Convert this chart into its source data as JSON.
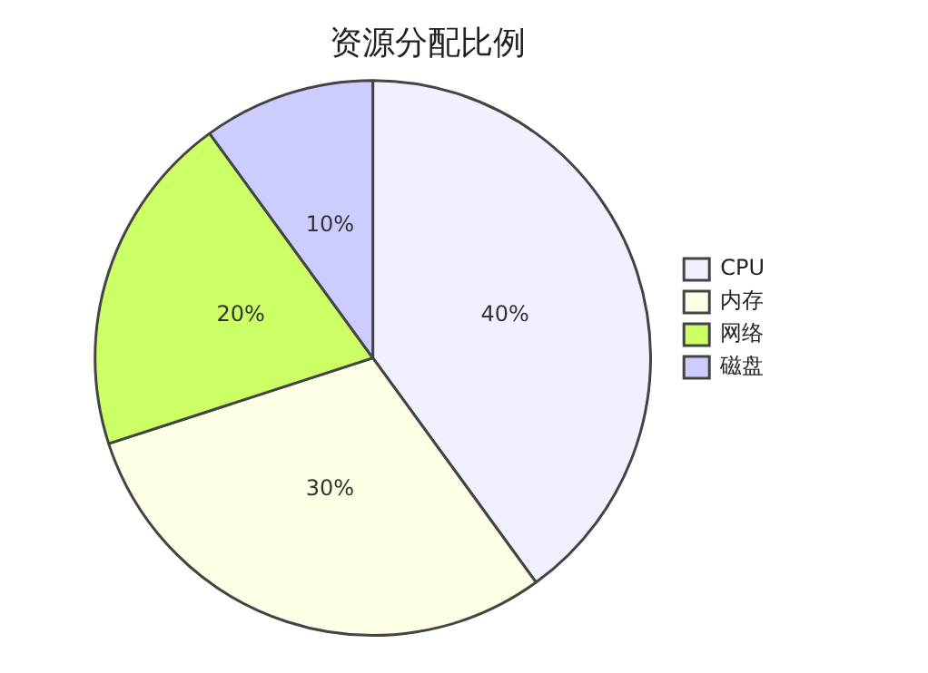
{
  "chart_data": {
    "type": "pie",
    "title": "资源分配比例",
    "categories": [
      "CPU",
      "内存",
      "网络",
      "磁盘"
    ],
    "values": [
      40,
      30,
      20,
      10
    ],
    "colors": [
      "#f0f0ff",
      "#ffffe6",
      "#ccff66",
      "#ccccff"
    ],
    "value_labels": [
      "40%",
      "30%",
      "20%",
      "10%"
    ],
    "legend": "right"
  }
}
